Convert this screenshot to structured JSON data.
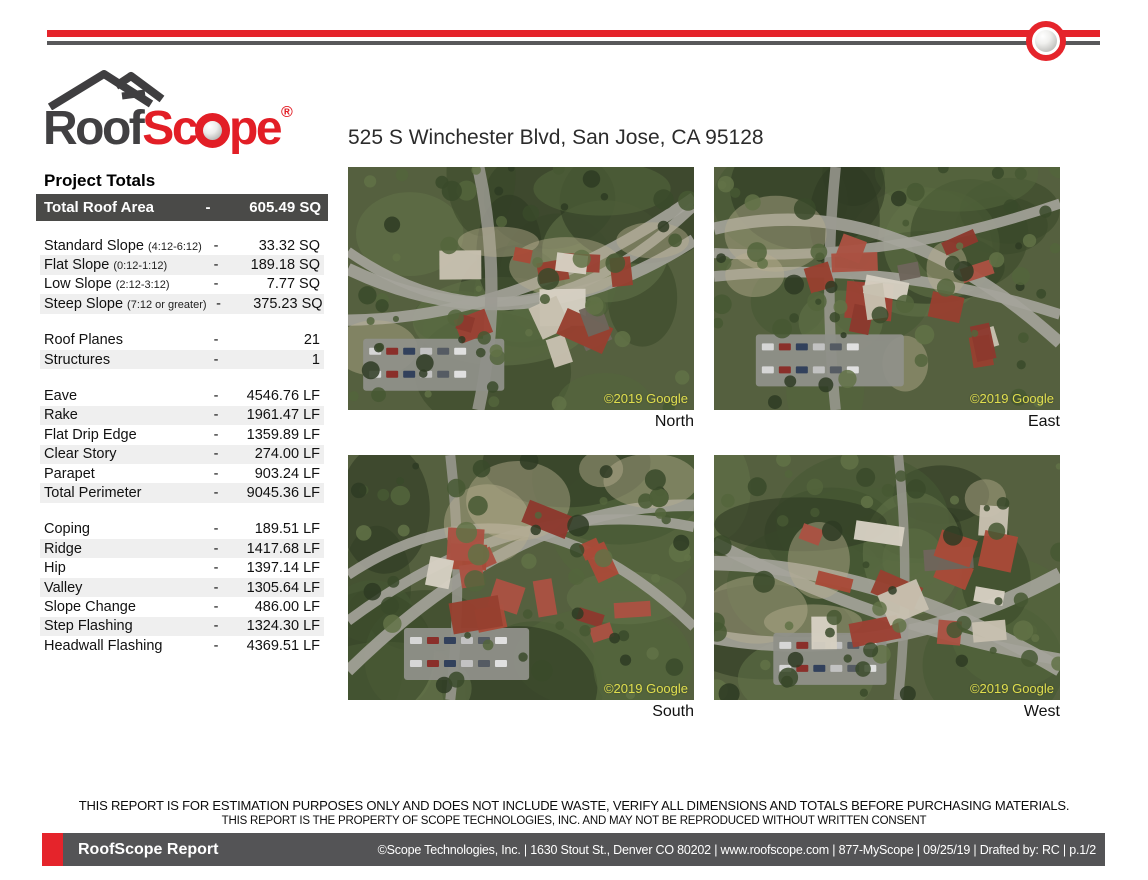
{
  "colors": {
    "brand_red": "#e5242b",
    "logo_dark_gray": "#414042",
    "banner_gray": "#4a4a48",
    "footer_gray": "#545456",
    "stripe_gray": "#efefef",
    "watermark_yellow": "#e8e54f"
  },
  "header": {
    "logo_roof": "Roof",
    "logo_scope_left": "Sc",
    "logo_scope_right": "pe",
    "logo_reg": "®",
    "address": "525 S Winchester Blvd, San Jose, CA 95128"
  },
  "project_totals": {
    "heading": "Project Totals",
    "total": {
      "label": "Total Roof Area",
      "dash": "-",
      "value": "605.49 SQ"
    },
    "groups": [
      {
        "rows": [
          {
            "label": "Standard Slope",
            "note": "(4:12-6:12)",
            "dash": "-",
            "value": "33.32 SQ"
          },
          {
            "label": "Flat Slope",
            "note": "(0:12-1:12)",
            "dash": "-",
            "value": "189.18 SQ"
          },
          {
            "label": "Low Slope",
            "note": "(2:12-3:12)",
            "dash": "-",
            "value": "7.77 SQ"
          },
          {
            "label": "Steep Slope",
            "note": "(7:12 or greater)",
            "dash": "-",
            "value": "375.23 SQ"
          }
        ]
      },
      {
        "rows": [
          {
            "label": "Roof Planes",
            "dash": "-",
            "value": "21"
          },
          {
            "label": "Structures",
            "dash": "-",
            "value": "1"
          }
        ]
      },
      {
        "rows": [
          {
            "label": "Eave",
            "dash": "-",
            "value": "4546.76 LF"
          },
          {
            "label": "Rake",
            "dash": "-",
            "value": "1961.47 LF"
          },
          {
            "label": "Flat Drip Edge",
            "dash": "-",
            "value": "1359.89 LF"
          },
          {
            "label": "Clear Story",
            "dash": "-",
            "value": "274.00 LF"
          },
          {
            "label": "Parapet",
            "dash": "-",
            "value": "903.24 LF"
          },
          {
            "label": "Total Perimeter",
            "dash": "-",
            "value": "9045.36 LF"
          }
        ]
      },
      {
        "rows": [
          {
            "label": "Coping",
            "dash": "-",
            "value": "189.51 LF"
          },
          {
            "label": "Ridge",
            "dash": "-",
            "value": "1417.68 LF"
          },
          {
            "label": "Hip",
            "dash": "-",
            "value": "1397.14 LF"
          },
          {
            "label": "Valley",
            "dash": "-",
            "value": "1305.64 LF"
          },
          {
            "label": "Slope Change",
            "dash": "-",
            "value": "486.00 LF"
          },
          {
            "label": "Step Flashing",
            "dash": "-",
            "value": "1324.30 LF"
          },
          {
            "label": "Headwall Flashing",
            "dash": "-",
            "value": "4369.51 LF"
          }
        ]
      }
    ]
  },
  "aerials": [
    {
      "label": "North",
      "watermark": "©2019 Google"
    },
    {
      "label": "East",
      "watermark": "©2019 Google"
    },
    {
      "label": "South",
      "watermark": "©2019 Google"
    },
    {
      "label": "West",
      "watermark": "©2019 Google"
    }
  ],
  "disclaimer": {
    "line1": "THIS REPORT IS FOR ESTIMATION PURPOSES ONLY AND DOES NOT INCLUDE WASTE, VERIFY ALL DIMENSIONS AND TOTALS BEFORE PURCHASING MATERIALS.",
    "line2": "THIS REPORT IS THE PROPERTY OF SCOPE TECHNOLOGIES, INC. AND MAY NOT BE REPRODUCED WITHOUT WRITTEN CONSENT"
  },
  "footer": {
    "title": "RoofScope Report",
    "info": "©Scope Technologies, Inc. | 1630 Stout St., Denver CO 80202 | www.roofscope.com | 877-MyScope | 09/25/19 | Drafted by: RC | p.1/2"
  }
}
